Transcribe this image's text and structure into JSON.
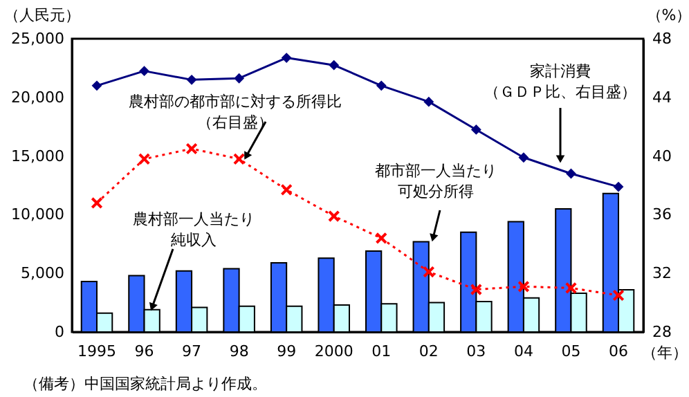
{
  "chart_data": {
    "type": "bar",
    "categories": [
      "1995",
      "96",
      "97",
      "98",
      "99",
      "2000",
      "01",
      "02",
      "03",
      "04",
      "05",
      "06"
    ],
    "xlabel": "（年）",
    "ylabel": "（人民元）",
    "y2label": "（%）",
    "ylim": [
      0,
      25000
    ],
    "yticks": [
      0,
      {
        "value": 5000,
        "label": "5,000"
      },
      {
        "value": 10000,
        "label": "10,000"
      },
      {
        "value": 15000,
        "label": "15,000"
      },
      {
        "value": 20000,
        "label": "20,000"
      },
      {
        "value": 25000,
        "label": "25,000"
      }
    ],
    "y2lim": [
      28,
      48
    ],
    "y2ticks": [
      28,
      32,
      36,
      40,
      44,
      48
    ],
    "series": [
      {
        "name": "都市部一人当たり可処分所得",
        "color": "#3366ff",
        "values": [
          4300,
          4800,
          5200,
          5400,
          5900,
          6300,
          6900,
          7700,
          8500,
          9400,
          10500,
          11800
        ]
      },
      {
        "name": "農村部一人当たり純収入",
        "color": "#ccffff",
        "values": [
          1600,
          1900,
          2100,
          2200,
          2200,
          2300,
          2400,
          2500,
          2600,
          2900,
          3300,
          3600
        ]
      },
      {
        "name": "家計消費（ＧＤＰ比、右目盛）",
        "type": "line",
        "axis": "y2",
        "color": "#000080",
        "marker": "diamond",
        "line_style": "solid",
        "values": [
          44.8,
          45.8,
          45.2,
          45.3,
          46.7,
          46.2,
          44.8,
          43.7,
          41.8,
          39.9,
          38.8,
          37.9
        ]
      },
      {
        "name": "農村部の都市部に対する所得比（右目盛）",
        "type": "line",
        "axis": "y2",
        "color": "#ff0000",
        "marker": "cross",
        "line_style": "dotted",
        "values": [
          36.8,
          39.8,
          40.5,
          39.8,
          37.7,
          35.9,
          34.4,
          32.1,
          30.9,
          31.1,
          31.0,
          30.5
        ]
      }
    ],
    "annotations": [
      "（備考）中国国家統計局より作成。"
    ],
    "legend": false,
    "grid": false
  }
}
